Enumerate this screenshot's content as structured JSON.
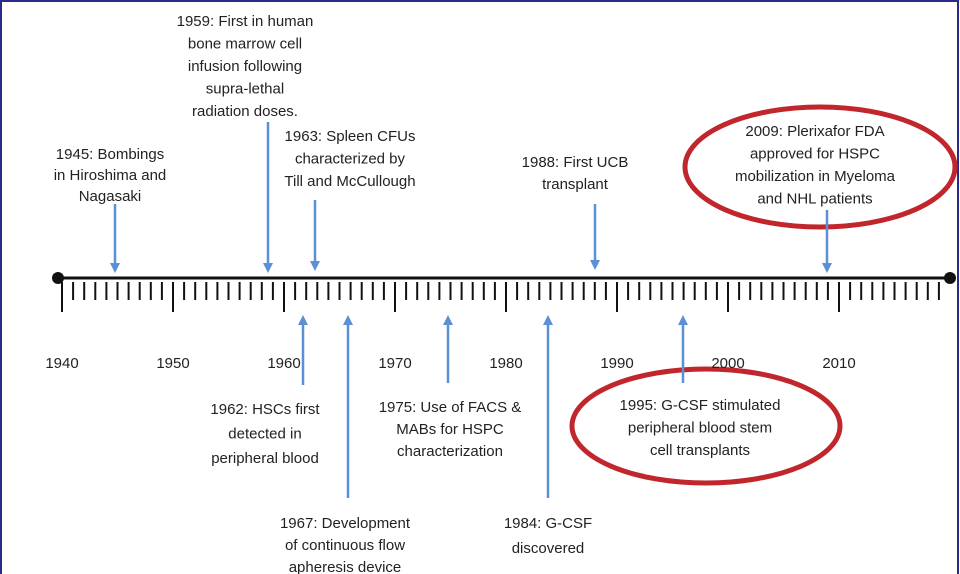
{
  "axis_labels": [
    "1940",
    "1950",
    "1960",
    "1970",
    "1980",
    "1990",
    "2000",
    "2010"
  ],
  "events_above": [
    {
      "lines": [
        "1945: Bombings",
        "in Hiroshima and",
        "Nagasaki"
      ]
    },
    {
      "lines": [
        "1959: First in human",
        "bone marrow cell",
        "infusion following",
        "supra-lethal",
        "radiation doses."
      ]
    },
    {
      "lines": [
        "1963: Spleen CFUs",
        "characterized by",
        "Till and McCullough"
      ]
    },
    {
      "lines": [
        "1988: First UCB",
        "transplant"
      ]
    },
    {
      "lines": [
        "2009: Plerixafor FDA",
        "approved for HSPC",
        "mobilization in Myeloma",
        "and NHL patients"
      ]
    }
  ],
  "events_below": [
    {
      "lines": [
        "1962: HSCs first",
        "detected in",
        "peripheral blood"
      ]
    },
    {
      "lines": [
        "1967: Development",
        "of continuous flow",
        "apheresis device"
      ]
    },
    {
      "lines": [
        "1975: Use of FACS &",
        "MABs for HSPC",
        "characterization"
      ]
    },
    {
      "lines": [
        "1984: G-CSF",
        "discovered"
      ]
    },
    {
      "lines": [
        "1995: G-CSF stimulated",
        "peripheral blood stem",
        "cell transplants"
      ]
    }
  ]
}
